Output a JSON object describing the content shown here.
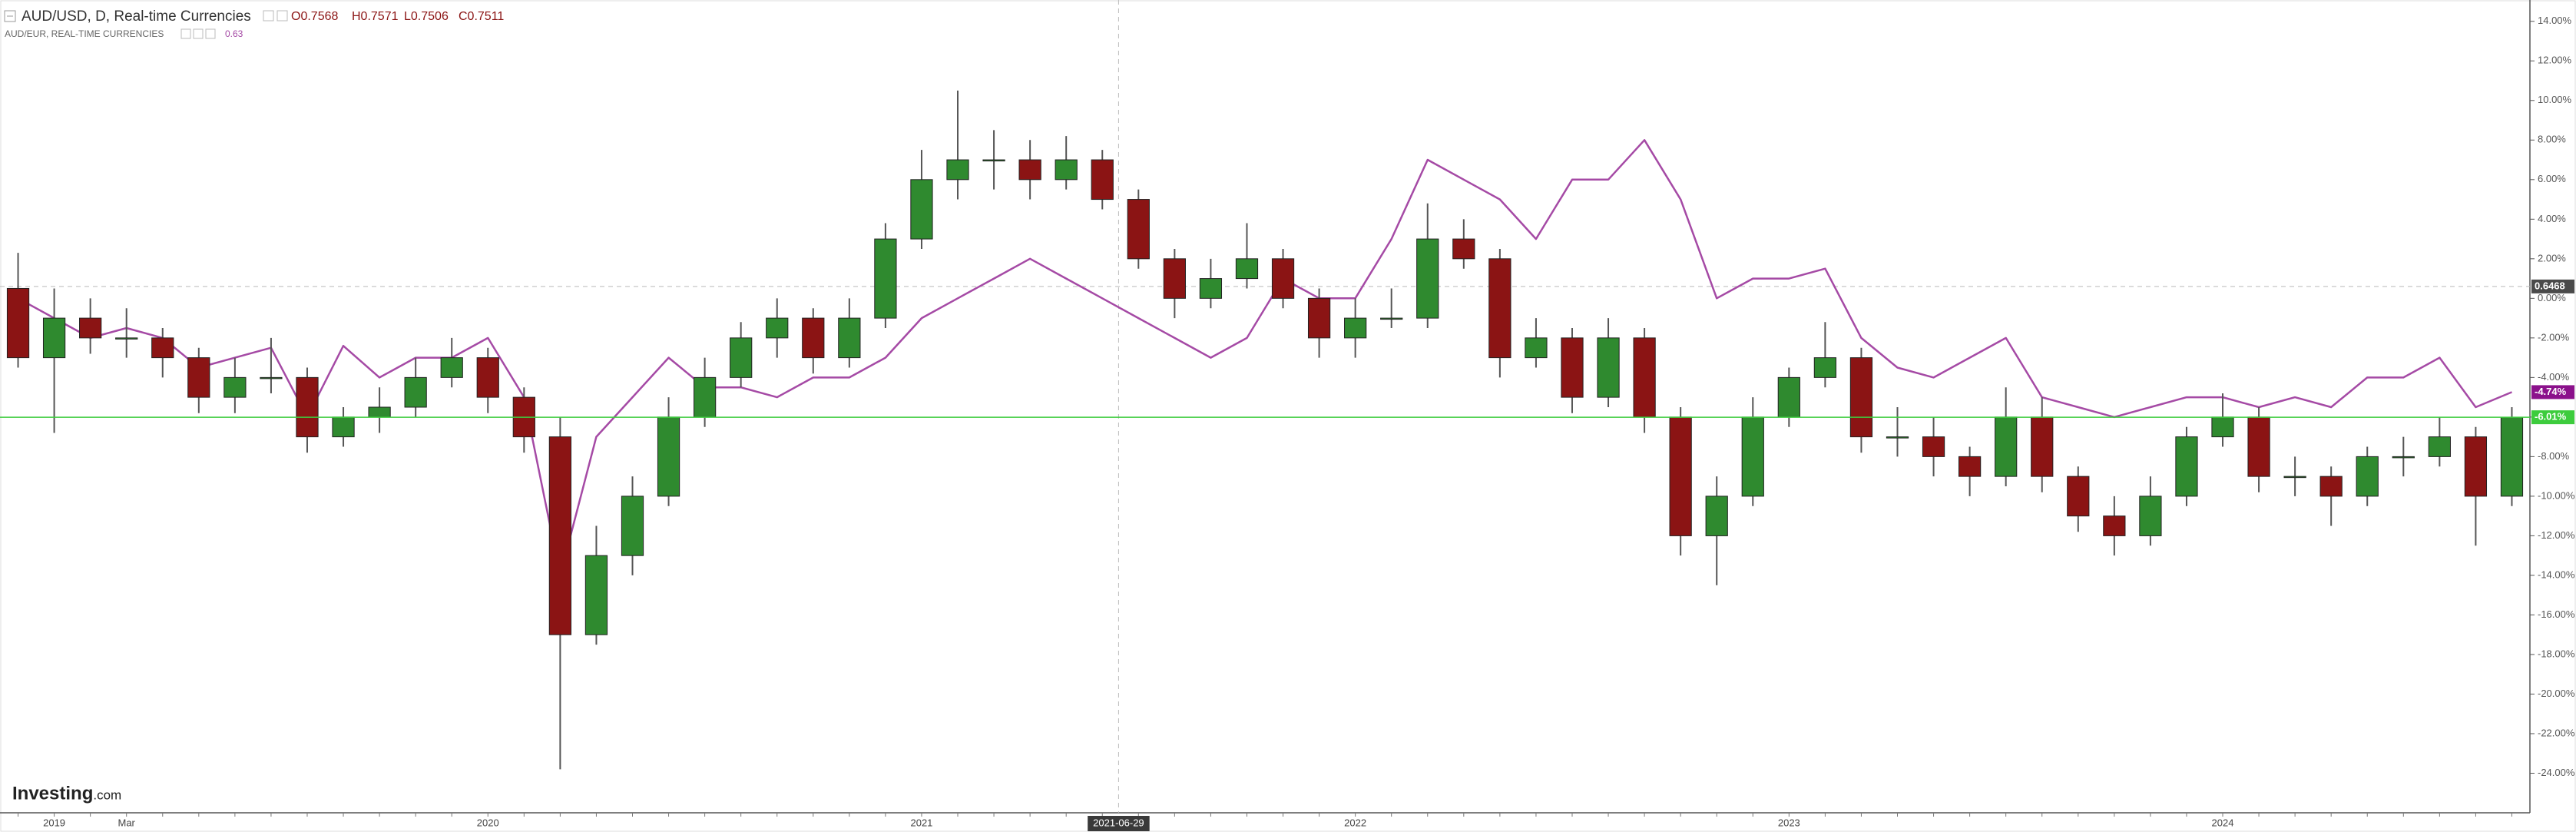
{
  "chart_data": {
    "type": "candlestick",
    "header": {
      "ohlc_labels": [
        "O0.7568",
        "H0.7571",
        "L0.7506",
        "C0.7511"
      ],
      "compare_value": "0.63"
    },
    "source_logo": [
      "Investing",
      ".com"
    ],
    "categories": [
      null,
      "2019",
      null,
      "Mar",
      null,
      null,
      null,
      null,
      null,
      null,
      null,
      null,
      null,
      "2020",
      null,
      null,
      null,
      null,
      null,
      null,
      null,
      null,
      null,
      null,
      null,
      "2021",
      null,
      null,
      null,
      null,
      null,
      null,
      null,
      null,
      null,
      null,
      null,
      "2022",
      null,
      null,
      null,
      null,
      null,
      null,
      null,
      null,
      null,
      null,
      null,
      "2023",
      null,
      null,
      null,
      null,
      null,
      null,
      null,
      null,
      null,
      null,
      null,
      "2024",
      null,
      null,
      null,
      null,
      null,
      null,
      null,
      null
    ],
    "crosshair": {
      "x_label": "2021-06-29"
    },
    "series": [
      {
        "name": "AUD/USD, D, Real-time Currencies",
        "type": "candlestick",
        "up_color": "#2f8a2f",
        "down_color": "#8b1414",
        "open": [
          0.5,
          -3,
          -1,
          -2,
          -2,
          -3,
          -5,
          -4,
          -4,
          -7,
          -6,
          -5.5,
          -4,
          -3,
          -5,
          -7,
          -17,
          -13,
          -10,
          -6,
          -4,
          -2,
          -1,
          -3,
          -1,
          3,
          6,
          7,
          7,
          6,
          7,
          5,
          2,
          0,
          1,
          2,
          0,
          -2,
          -1,
          -1,
          3,
          2,
          -3,
          -2,
          -5,
          -2,
          -6,
          -12,
          -10,
          -6,
          -4,
          -3,
          -7,
          -7,
          -8,
          -9,
          -6,
          -9,
          -11,
          -12,
          -10,
          -7,
          -6,
          -9,
          -9,
          -10,
          -8,
          -8,
          -7,
          -10
        ],
        "high": [
          2.3,
          0.5,
          0,
          -0.5,
          -1.5,
          -2.5,
          -3,
          -2,
          -3.5,
          -5.5,
          -4.5,
          -3,
          -2,
          -2.5,
          -4.5,
          -6,
          -11.5,
          -9,
          -5,
          -3,
          -1.2,
          0,
          -0.5,
          0,
          3.8,
          7.5,
          10.5,
          8.5,
          8,
          8.2,
          7.5,
          5.5,
          2.5,
          2,
          3.8,
          2.5,
          0.5,
          0,
          0.5,
          4.8,
          4,
          2.5,
          -1,
          -1.5,
          -1,
          -1.5,
          -5.5,
          -9,
          -5,
          -3.5,
          -1.2,
          -2.5,
          -5.5,
          -6,
          -7.5,
          -4.5,
          -5,
          -8.5,
          -10,
          -9,
          -6.5,
          -4.8,
          -5.5,
          -8,
          -8.5,
          -7.5,
          -7,
          -6,
          -6.5,
          -5.5
        ],
        "low": [
          -3.5,
          -6.8,
          -2.8,
          -3,
          -4,
          -5.8,
          -5.8,
          -4.8,
          -7.8,
          -7.5,
          -6.8,
          -6,
          -4.5,
          -5.8,
          -7.8,
          -23.8,
          -17.5,
          -14,
          -10.5,
          -6.5,
          -4.5,
          -3,
          -3.8,
          -3.5,
          -1.5,
          2.5,
          5,
          5.5,
          5,
          5.5,
          4.5,
          1.5,
          -1,
          -0.5,
          0.5,
          -0.5,
          -3,
          -3,
          -1.5,
          -1.5,
          1.5,
          -4,
          -3.5,
          -5.8,
          -5.5,
          -6.8,
          -13,
          -14.5,
          -10.5,
          -6.5,
          -4.5,
          -7.8,
          -8,
          -9,
          -10,
          -9.5,
          -9.8,
          -11.8,
          -13,
          -12.5,
          -10.5,
          -7.5,
          -9.8,
          -10,
          -11.5,
          -10.5,
          -9,
          -8.5,
          -12.5,
          -10.5
        ],
        "close": [
          -3,
          -1,
          -2,
          -2,
          -3,
          -5,
          -4,
          -4,
          -7,
          -6,
          -5.5,
          -4,
          -3,
          -5,
          -7,
          -17,
          -13,
          -10,
          -6,
          -4,
          -2,
          -1,
          -3,
          -1,
          3,
          6,
          7,
          7,
          6,
          7,
          5,
          2,
          0,
          1,
          2,
          0,
          -2,
          -1,
          -1,
          3,
          2,
          -3,
          -2,
          -5,
          -2,
          -6,
          -12,
          -10,
          -6,
          -4,
          -3,
          -7,
          -7,
          -8,
          -9,
          -6,
          -9,
          -11,
          -12,
          -10,
          -7,
          -6,
          -9,
          -9,
          -10,
          -8,
          -8,
          -7,
          -10,
          -6.01
        ],
        "price_line": {
          "value": -6.01,
          "label": "-6.01%",
          "color": "#3dcc3d"
        }
      },
      {
        "name": "AUD/EUR, REAL-TIME CURRENCIES",
        "type": "line",
        "color": "#a54aa5",
        "values": [
          0,
          -1,
          -2,
          -1.5,
          -2,
          -3.5,
          -3,
          -2.5,
          -6,
          -2.4,
          -4,
          -3,
          -3,
          -2,
          -5,
          -14,
          -7,
          -5,
          -3,
          -4.5,
          -4.5,
          -5,
          -4,
          -4,
          -3,
          -1,
          0,
          1,
          2,
          1,
          0,
          -1,
          -2,
          -3,
          -2,
          1,
          0,
          0,
          3,
          7,
          6,
          5,
          3,
          6,
          6,
          8,
          5,
          0,
          1,
          1,
          1.5,
          -2,
          -3.5,
          -4,
          -3,
          -2,
          -5,
          -5.5,
          -6,
          -5.5,
          -5,
          -5,
          -5.5,
          -5,
          -5.5,
          -4,
          -4,
          -3,
          -5.5,
          -4.74
        ],
        "last_label": {
          "value": -4.74,
          "label": "-4.74%",
          "color": "#8b118b"
        }
      }
    ],
    "reference_line": {
      "value": 0.6,
      "label": "0.6468"
    },
    "ylim": [
      -26,
      15
    ],
    "yticks": [
      {
        "value": 14,
        "label": "14.00%"
      },
      {
        "value": 12,
        "label": "12.00%"
      },
      {
        "value": 10,
        "label": "10.00%"
      },
      {
        "value": 8,
        "label": "8.00%"
      },
      {
        "value": 6,
        "label": "6.00%"
      },
      {
        "value": 4,
        "label": "4.00%"
      },
      {
        "value": 2,
        "label": "2.00%"
      },
      {
        "value": 0,
        "label": "0.00%"
      },
      {
        "value": -2,
        "label": "-2.00%"
      },
      {
        "value": -4,
        "label": "-4.00%"
      },
      {
        "value": -6,
        "label": "-6.00%"
      },
      {
        "value": -8,
        "label": "-8.00%"
      },
      {
        "value": -10,
        "label": "-10.00%"
      },
      {
        "value": -12,
        "label": "-12.00%"
      },
      {
        "value": -14,
        "label": "-14.00%"
      },
      {
        "value": -16,
        "label": "-16.00%"
      },
      {
        "value": -18,
        "label": "-18.00%"
      },
      {
        "value": -20,
        "label": "-20.00%"
      },
      {
        "value": -22,
        "label": "-22.00%"
      },
      {
        "value": -24,
        "label": "-24.00%"
      }
    ],
    "grid": false
  }
}
